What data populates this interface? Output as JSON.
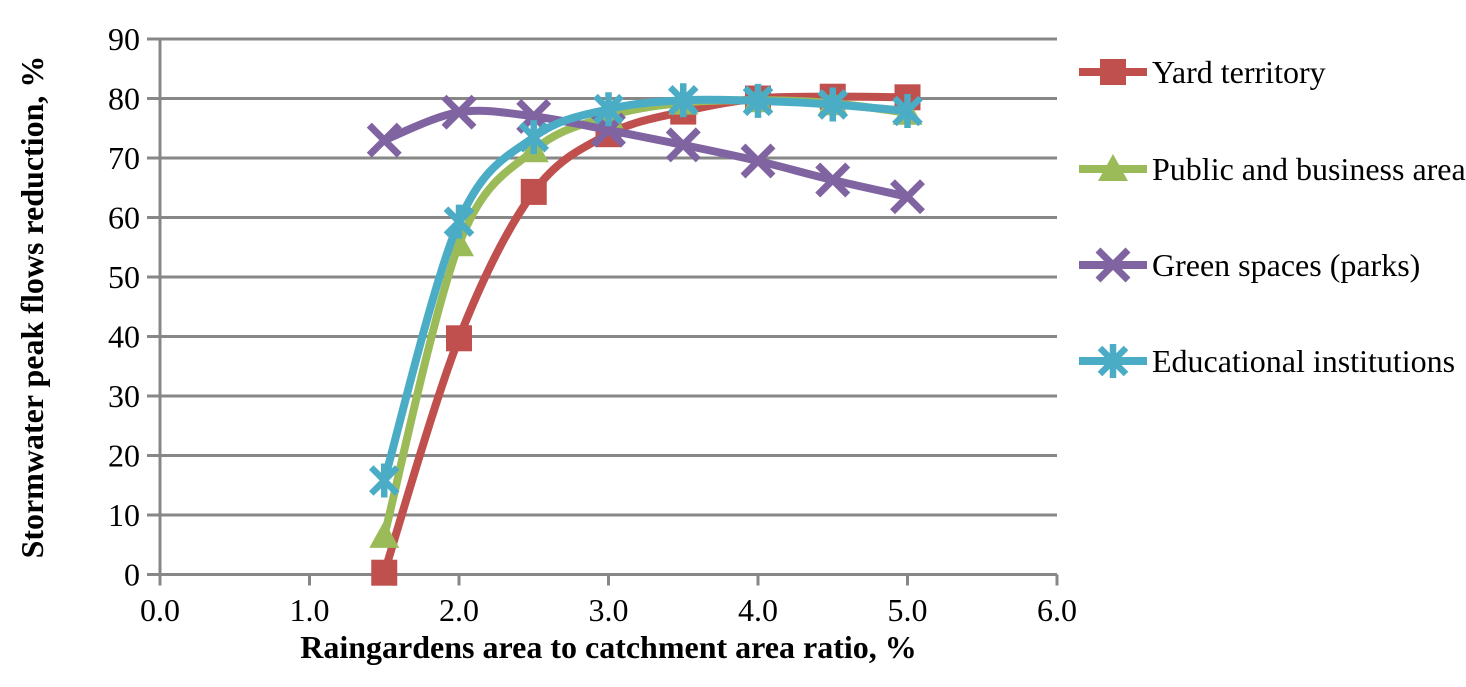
{
  "chart_data": {
    "type": "line",
    "title": "",
    "xlabel": "Raingardens area to catchment area ratio, %",
    "ylabel": "Stormwater peak flows reduction, %",
    "xlim": [
      0.0,
      6.0
    ],
    "ylim": [
      0,
      90
    ],
    "x_tick_labels": [
      "0.0",
      "1.0",
      "2.0",
      "3.0",
      "4.0",
      "5.0",
      "6.0"
    ],
    "y_tick_labels": [
      "0",
      "10",
      "20",
      "30",
      "40",
      "50",
      "60",
      "70",
      "80",
      "90"
    ],
    "grid": "horizontal",
    "legend_position": "right",
    "smoothed": true,
    "x": [
      1.5,
      2.0,
      2.5,
      3.0,
      3.5,
      4.0,
      4.5,
      5.0
    ],
    "series": [
      {
        "name": "Yard territory",
        "marker": "square",
        "color": "#C0504D",
        "values": [
          0.3,
          39.7,
          64.3,
          74.0,
          77.8,
          80.0,
          80.3,
          80.2
        ]
      },
      {
        "name": "Public and business area",
        "marker": "triangle",
        "color": "#9BBB59",
        "values": [
          6.5,
          55.5,
          71.3,
          77.0,
          79.3,
          79.7,
          79.2,
          77.6
        ]
      },
      {
        "name": "Green spaces (parks)",
        "marker": "x",
        "color": "#8064A2",
        "values": [
          73.0,
          77.7,
          77.0,
          74.7,
          72.2,
          69.5,
          66.3,
          63.5
        ]
      },
      {
        "name": "Educational institutions",
        "marker": "asterisk",
        "color": "#4BACC6",
        "values": [
          15.8,
          59.3,
          73.5,
          78.2,
          79.7,
          79.6,
          79.0,
          77.9
        ]
      }
    ],
    "grid_color": "#878787",
    "axis_color": "#878787",
    "text_color": "#000000",
    "background": "#FFFFFF"
  }
}
